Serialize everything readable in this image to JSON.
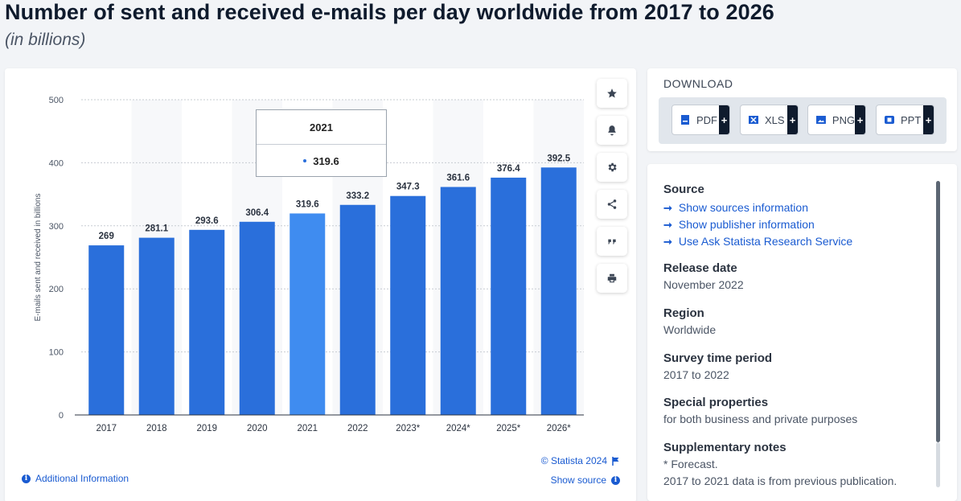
{
  "header": {
    "title": "Number of sent and received e-mails per day worldwide from 2017 to 2026",
    "subtitle": "(in billions)"
  },
  "chart_data": {
    "type": "bar",
    "categories": [
      "2017",
      "2018",
      "2019",
      "2020",
      "2021",
      "2022",
      "2023*",
      "2024*",
      "2025*",
      "2026*"
    ],
    "values": [
      269,
      281.1,
      293.6,
      306.4,
      319.6,
      333.2,
      347.3,
      361.6,
      376.4,
      392.5
    ],
    "value_labels": [
      "269",
      "281.1",
      "293.6",
      "306.4",
      "319.6",
      "333.2",
      "347.3",
      "361.6",
      "376.4",
      "392.5"
    ],
    "ylabel": "E-mails sent and received in billions",
    "xlabel": "",
    "ylim": [
      0,
      500
    ],
    "yticks": [
      "0",
      "100",
      "200",
      "300",
      "400",
      "500"
    ],
    "grid": true,
    "highlighted_index": 4,
    "bar_color": "#2a6fdb",
    "highlight_color": "#3f8cf0"
  },
  "tooltip": {
    "title": "2021",
    "value": "319.6"
  },
  "chart_footer": {
    "copyright": "© Statista 2024",
    "show_source": "Show source",
    "additional_info": "Additional Information"
  },
  "toolbar": [
    {
      "name": "favorite-button",
      "icon": "star-icon"
    },
    {
      "name": "notification-button",
      "icon": "bell-icon"
    },
    {
      "name": "settings-button",
      "icon": "gear-icon"
    },
    {
      "name": "share-button",
      "icon": "share-icon"
    },
    {
      "name": "cite-button",
      "icon": "quote-icon"
    },
    {
      "name": "print-button",
      "icon": "print-icon"
    }
  ],
  "download": {
    "title": "DOWNLOAD",
    "buttons": [
      {
        "label": "PDF",
        "icon": "pdf-icon",
        "plus": "+"
      },
      {
        "label": "XLS",
        "icon": "xls-icon",
        "plus": "+"
      },
      {
        "label": "PNG",
        "icon": "png-icon",
        "plus": "+"
      },
      {
        "label": "PPT",
        "icon": "ppt-icon",
        "plus": "+"
      }
    ]
  },
  "info": {
    "source_heading": "Source",
    "source_links": [
      "Show sources information",
      "Show publisher information",
      "Use Ask Statista Research Service"
    ],
    "release_heading": "Release date",
    "release_value": "November 2022",
    "region_heading": "Region",
    "region_value": "Worldwide",
    "survey_heading": "Survey time period",
    "survey_value": "2017 to 2022",
    "special_heading": "Special properties",
    "special_value": "for both business and private purposes",
    "notes_heading": "Supplementary notes",
    "notes_line1": "* Forecast.",
    "notes_line2": "2017 to 2021 data is from previous publication."
  },
  "colors": {
    "accent": "#1a5bd1",
    "bar": "#2a6fdb",
    "bar_highlight": "#3f8cf0"
  }
}
